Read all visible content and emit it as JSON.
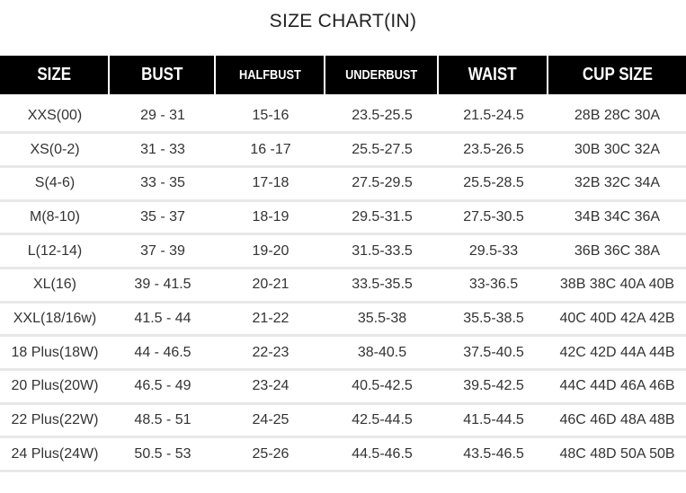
{
  "title": "SIZE CHART(IN)",
  "headers": [
    "SIZE",
    "BUST",
    "HALFBUST",
    "UNDERBUST",
    "WAIST",
    "CUP SIZE"
  ],
  "rows": [
    [
      "XXS(00)",
      "29 - 31",
      "15-16",
      "23.5-25.5",
      "21.5-24.5",
      "28B 28C 30A"
    ],
    [
      "XS(0-2)",
      "31 - 33",
      "16 -17",
      "25.5-27.5",
      "23.5-26.5",
      "30B 30C 32A"
    ],
    [
      "S(4-6)",
      "33 - 35",
      "17-18",
      "27.5-29.5",
      "25.5-28.5",
      "32B 32C 34A"
    ],
    [
      "M(8-10)",
      "35 - 37",
      "18-19",
      "29.5-31.5",
      "27.5-30.5",
      "34B 34C 36A"
    ],
    [
      "L(12-14)",
      "37 - 39",
      "19-20",
      "31.5-33.5",
      "29.5-33",
      "36B 36C 38A"
    ],
    [
      "XL(16)",
      "39 - 41.5",
      "20-21",
      "33.5-35.5",
      "33-36.5",
      "38B 38C 40A 40B"
    ],
    [
      "XXL(18/16w)",
      "41.5 - 44",
      "21-22",
      "35.5-38",
      "35.5-38.5",
      "40C 40D 42A 42B"
    ],
    [
      "18 Plus(18W)",
      "44 - 46.5",
      "22-23",
      "38-40.5",
      "37.5-40.5",
      "42C 42D  44A 44B"
    ],
    [
      "20 Plus(20W)",
      "46.5 - 49",
      "23-24",
      "40.5-42.5",
      "39.5-42.5",
      "44C 44D 46A 46B"
    ],
    [
      "22 Plus(22W)",
      "48.5 - 51",
      "24-25",
      "42.5-44.5",
      "41.5-44.5",
      "46C 46D 48A 48B"
    ],
    [
      "24 Plus(24W)",
      "50.5 - 53",
      "25-26",
      "44.5-46.5",
      "43.5-46.5",
      "48C 48D 50A 50B"
    ]
  ]
}
